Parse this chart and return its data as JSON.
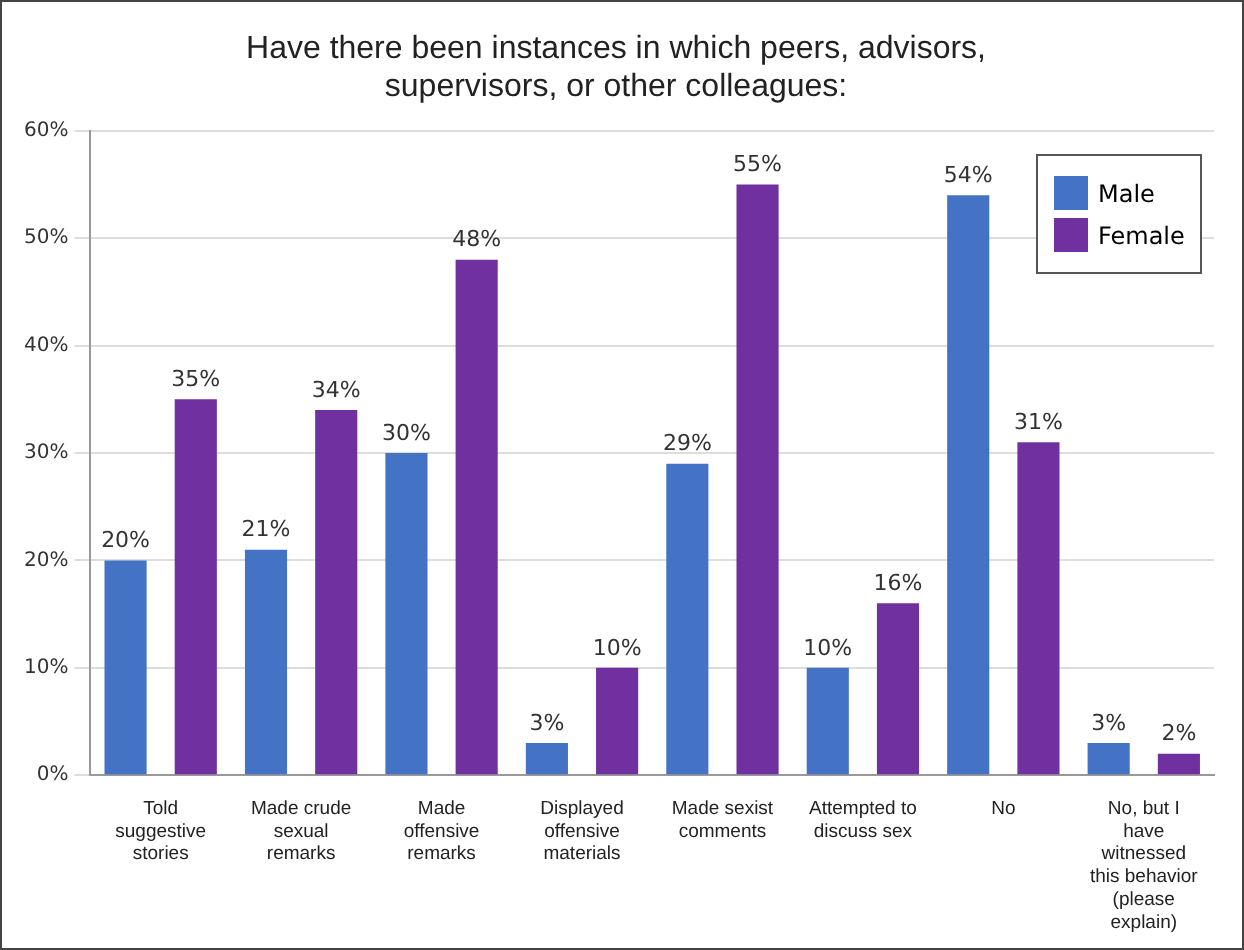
{
  "chart_data": {
    "type": "bar",
    "title": "Have there been instances in which peers, advisors, supervisors, or other colleagues:",
    "categories": [
      "Told suggestive stories",
      "Made crude sexual remarks",
      "Made offensive remarks",
      "Displayed offensive materials",
      "Made sexist comments",
      "Attempted to discuss sex",
      "No",
      "No, but I have witnessed this behavior (please explain)"
    ],
    "series": [
      {
        "name": "Male",
        "color": "#4472c4",
        "values": [
          20,
          21,
          30,
          3,
          29,
          10,
          54,
          3
        ],
        "value_labels": [
          "20%",
          "21%",
          "30%",
          "3%",
          "29%",
          "10%",
          "54%",
          "3%"
        ]
      },
      {
        "name": "Female",
        "color": "#7030a0",
        "values": [
          35,
          34,
          48,
          10,
          55,
          16,
          31,
          2
        ],
        "value_labels": [
          "35%",
          "34%",
          "48%",
          "10%",
          "55%",
          "16%",
          "31%",
          "2%"
        ]
      }
    ],
    "ylim": [
      0,
      60
    ],
    "yticks": [
      {
        "value": 0,
        "label": "0%"
      },
      {
        "value": 10,
        "label": "10%"
      },
      {
        "value": 20,
        "label": "20%"
      },
      {
        "value": 30,
        "label": "30%"
      },
      {
        "value": 40,
        "label": "40%"
      },
      {
        "value": 50,
        "label": "50%"
      },
      {
        "value": 60,
        "label": "60%"
      }
    ],
    "grid": "y",
    "legend": "top right"
  }
}
